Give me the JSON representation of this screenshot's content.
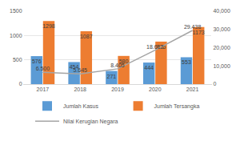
{
  "chart_data": {
    "type": "bar",
    "categories": [
      "2017",
      "2018",
      "2019",
      "2020",
      "2021"
    ],
    "series": [
      {
        "name": "Jumlah Kasus",
        "type": "bar",
        "color": "#5b9bd5",
        "values": [
          576,
          454,
          271,
          444,
          553
        ]
      },
      {
        "name": "Jumlah Tersangka",
        "type": "bar",
        "color": "#ed7d31",
        "values": [
          1298,
          1087,
          580,
          875,
          1173
        ]
      },
      {
        "name": "Nilai Kerugian Negara",
        "type": "line",
        "axis": "y2",
        "color": "#a5a5a5",
        "values": [
          6500,
          5645,
          8405,
          18613,
          29438
        ],
        "value_labels": [
          "6.500",
          "5.645",
          "8.405",
          "18.613",
          "29.438"
        ]
      }
    ],
    "ylim": [
      0,
      1500
    ],
    "yticks": [
      0,
      500,
      1000,
      1500
    ],
    "y2lim": [
      0,
      40000
    ],
    "y2ticks": [
      0,
      {
        "value": 10000,
        "label": "10,000"
      },
      {
        "value": 20000,
        "label": "20,000"
      },
      {
        "value": 30000,
        "label": "30,000"
      },
      {
        "value": 40000,
        "label": "40,000"
      }
    ],
    "grid": true,
    "legend": "bottom",
    "data_labels": true
  }
}
